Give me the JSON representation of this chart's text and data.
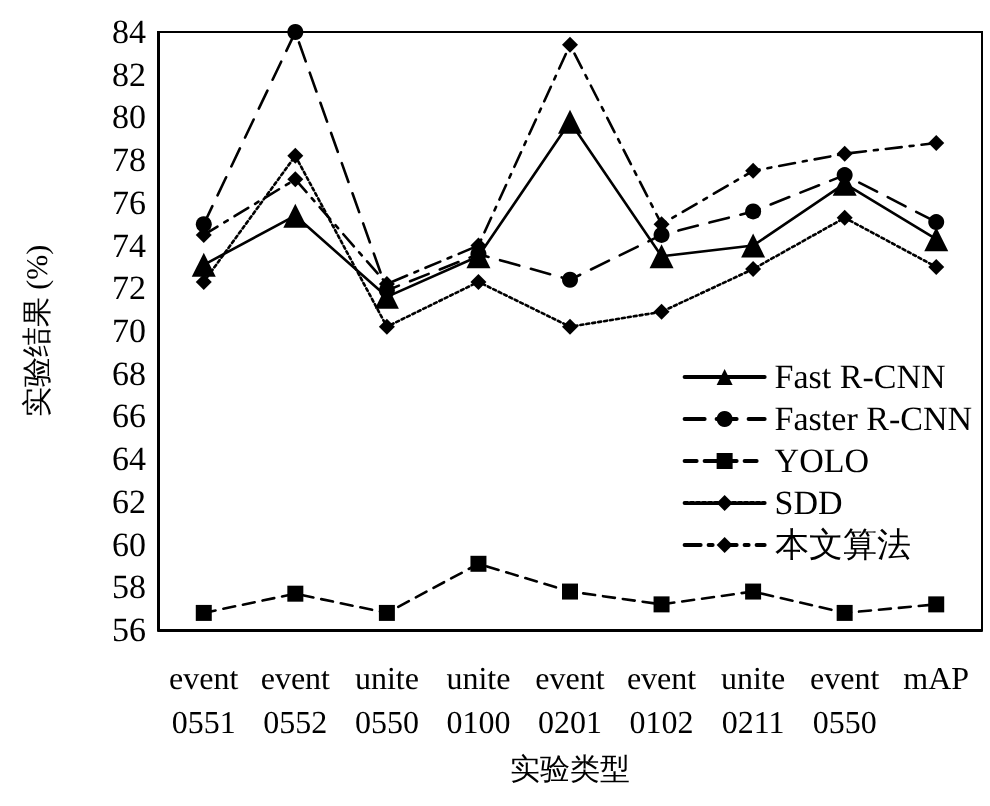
{
  "chart_data": {
    "type": "line",
    "xlabel": "实验类型",
    "ylabel": "实验结果 (%)",
    "categories": [
      "event\n0551",
      "event\n0552",
      "unite\n0550",
      "unite\n0100",
      "event\n0201",
      "event\n0102",
      "unite\n0211",
      "event\n0550",
      "mAP"
    ],
    "series": [
      {
        "name": "Fast R-CNN",
        "color": "#000000",
        "marker": "triangle",
        "line_style": "solid",
        "values": [
          73.1,
          75.4,
          71.6,
          73.5,
          79.8,
          73.5,
          74.0,
          76.9,
          74.3
        ]
      },
      {
        "name": "Faster R-CNN",
        "color": "#000000",
        "marker": "circle",
        "line_style": "dashed",
        "values": [
          75.0,
          84.0,
          71.9,
          73.6,
          72.4,
          74.5,
          75.6,
          77.3,
          75.1
        ]
      },
      {
        "name": "YOLO",
        "color": "#000000",
        "marker": "square",
        "line_style": "dashed",
        "values": [
          56.8,
          57.7,
          56.8,
          59.1,
          57.8,
          57.2,
          57.8,
          56.8,
          57.2
        ]
      },
      {
        "name": "SDD",
        "color": "#000000",
        "marker": "diamond",
        "line_style": "dotted",
        "values": [
          72.3,
          78.2,
          70.2,
          72.3,
          70.2,
          70.9,
          72.9,
          75.3,
          73.0
        ]
      },
      {
        "name": "本文算法",
        "color": "#000000",
        "marker": "diamond",
        "line_style": "dashed",
        "values": [
          74.5,
          77.1,
          72.2,
          74.0,
          83.4,
          75.0,
          77.5,
          78.3,
          78.8
        ]
      }
    ],
    "ylim": [
      56,
      84
    ],
    "yticks": [
      56,
      58,
      60,
      62,
      64,
      66,
      68,
      70,
      72,
      74,
      76,
      78,
      80,
      82,
      84
    ],
    "grid": false,
    "legend": "right"
  }
}
